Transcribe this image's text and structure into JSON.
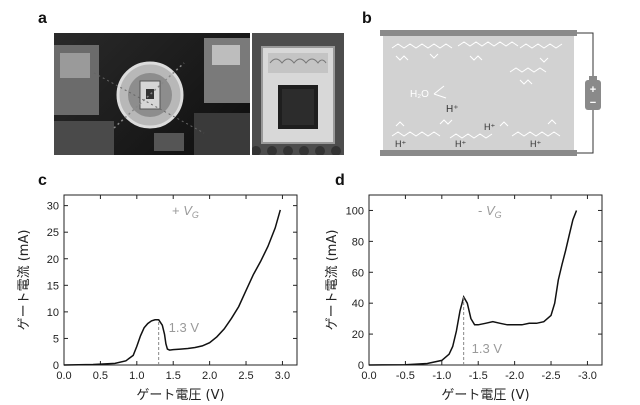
{
  "panels": {
    "a": "a",
    "b": "b",
    "c": "c",
    "d": "d"
  },
  "schematic": {
    "water": "H₂O",
    "proton": "H⁺",
    "battery_plus": "+",
    "battery_minus": "−"
  },
  "chart_data": [
    {
      "type": "line",
      "annotation_sign": "+ ",
      "annotation_v": "V",
      "annotation_sub": "G",
      "peak_label": "1.3 V",
      "peak_x": 1.3,
      "xlabel": "ゲート電圧 (V)",
      "ylabel": "ゲート電流 (mA)",
      "xlim": [
        0,
        3.2
      ],
      "ylim": [
        0,
        32
      ],
      "xticks": [
        0,
        0.5,
        1.0,
        1.5,
        2.0,
        2.5,
        3.0
      ],
      "xtick_labels": [
        "0.0",
        "0.5",
        "1.0",
        "1.5",
        "2.0",
        "2.5",
        "3.0"
      ],
      "yticks": [
        0,
        5,
        10,
        15,
        20,
        25,
        30
      ],
      "ytick_labels": [
        "0",
        "5",
        "10",
        "15",
        "20",
        "25",
        "30"
      ],
      "series": [
        {
          "x": [
            0,
            0.4,
            0.7,
            0.85,
            0.95,
            1.0,
            1.05,
            1.1,
            1.15,
            1.2,
            1.25,
            1.3,
            1.35,
            1.38,
            1.4,
            1.42,
            1.45,
            1.5,
            1.6,
            1.7,
            1.8,
            1.9,
            2.0,
            2.1,
            2.2,
            2.3,
            2.4,
            2.5,
            2.6,
            2.7,
            2.8,
            2.9,
            2.97
          ],
          "y": [
            0,
            0.1,
            0.3,
            0.8,
            1.8,
            3.5,
            5.5,
            7.0,
            7.8,
            8.3,
            8.5,
            8.5,
            7.5,
            5.8,
            4.0,
            3.0,
            2.8,
            2.9,
            3.0,
            3.1,
            3.3,
            3.6,
            4.2,
            5.3,
            6.8,
            8.8,
            11.0,
            14.0,
            17.0,
            19.5,
            22.3,
            25.8,
            29.2
          ]
        }
      ]
    },
    {
      "type": "line",
      "annotation_sign": "- ",
      "annotation_v": "V",
      "annotation_sub": "G",
      "peak_label": "1.3 V",
      "peak_x": -1.3,
      "xlabel": "ゲート電圧 (V)",
      "ylabel": "ゲート電流 (mA)",
      "xlim": [
        0,
        -3.2
      ],
      "ylim": [
        0,
        110
      ],
      "xticks": [
        0,
        -0.5,
        -1.0,
        -1.5,
        -2.0,
        -2.5,
        -3.0
      ],
      "xtick_labels": [
        "0.0",
        "-0.5",
        "-1.0",
        "-1.5",
        "-2.0",
        "-2.5",
        "-3.0"
      ],
      "yticks": [
        0,
        20,
        40,
        60,
        80,
        100
      ],
      "ytick_labels": [
        "0",
        "20",
        "40",
        "60",
        "80",
        "100"
      ],
      "series": [
        {
          "x": [
            0,
            -0.5,
            -0.8,
            -1.0,
            -1.1,
            -1.15,
            -1.2,
            -1.25,
            -1.3,
            -1.35,
            -1.4,
            -1.45,
            -1.5,
            -1.6,
            -1.7,
            -1.8,
            -1.9,
            -2.0,
            -2.1,
            -2.2,
            -2.3,
            -2.4,
            -2.5,
            -2.55,
            -2.6,
            -2.65,
            -2.7,
            -2.75,
            -2.8,
            -2.85
          ],
          "y": [
            0,
            0.2,
            1.0,
            3.0,
            7.0,
            12.0,
            22.0,
            35.0,
            44.0,
            40.0,
            30.0,
            26.0,
            26.0,
            27.0,
            28.0,
            27.0,
            26.0,
            26.0,
            26.0,
            27.0,
            27.0,
            28.0,
            32.0,
            40.0,
            55.0,
            65.0,
            74.0,
            84.0,
            94.0,
            100.0
          ]
        }
      ]
    }
  ]
}
